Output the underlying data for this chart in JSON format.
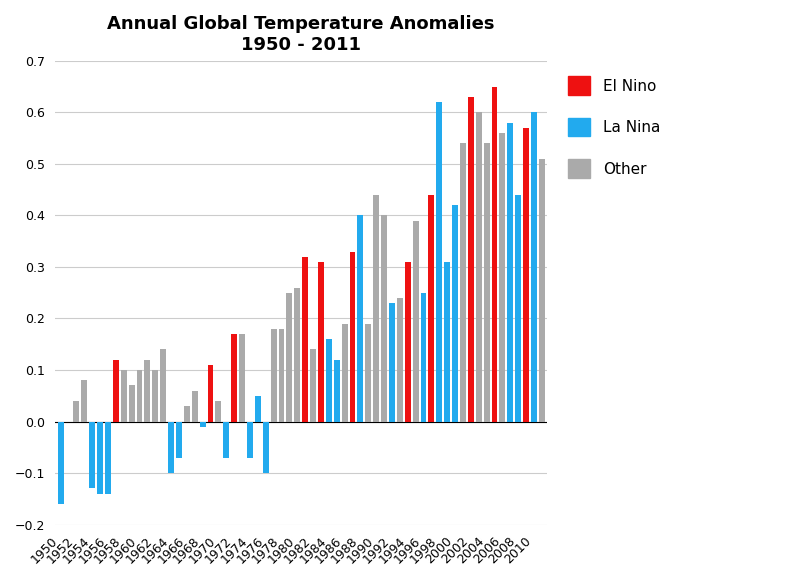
{
  "title_line1": "Annual Global Temperature Anomalies",
  "title_line2": "1950 - 2011",
  "years": [
    1950,
    1951,
    1952,
    1953,
    1954,
    1955,
    1956,
    1957,
    1958,
    1959,
    1960,
    1961,
    1962,
    1963,
    1964,
    1965,
    1966,
    1967,
    1968,
    1969,
    1970,
    1971,
    1972,
    1973,
    1974,
    1975,
    1976,
    1977,
    1978,
    1979,
    1980,
    1981,
    1982,
    1983,
    1984,
    1985,
    1986,
    1987,
    1988,
    1989,
    1990,
    1991,
    1992,
    1993,
    1994,
    1995,
    1996,
    1997,
    1998,
    1999,
    2000,
    2001,
    2002,
    2003,
    2004,
    2005,
    2006,
    2007,
    2008,
    2009,
    2010,
    2011
  ],
  "values": [
    -0.16,
    0.0,
    0.04,
    0.08,
    -0.13,
    -0.14,
    -0.14,
    0.12,
    0.1,
    0.07,
    0.1,
    0.12,
    0.1,
    0.14,
    -0.1,
    -0.07,
    0.03,
    0.06,
    -0.01,
    0.11,
    0.04,
    -0.07,
    0.17,
    0.17,
    -0.07,
    0.05,
    -0.1,
    0.18,
    0.18,
    0.25,
    0.26,
    0.32,
    0.14,
    0.31,
    0.16,
    0.12,
    0.19,
    0.33,
    0.4,
    0.19,
    0.44,
    0.4,
    0.23,
    0.24,
    0.31,
    0.39,
    0.25,
    0.44,
    0.62,
    0.31,
    0.42,
    0.54,
    0.63,
    0.6,
    0.54,
    0.65,
    0.56,
    0.58,
    0.44,
    0.57,
    0.6,
    0.51
  ],
  "enso_type": [
    "La Nina",
    "Other",
    "Other",
    "Other",
    "La Nina",
    "La Nina",
    "La Nina",
    "El Nino",
    "Other",
    "Other",
    "Other",
    "Other",
    "Other",
    "Other",
    "La Nina",
    "La Nina",
    "Other",
    "Other",
    "La Nina",
    "El Nino",
    "Other",
    "La Nina",
    "El Nino",
    "Other",
    "La Nina",
    "La Nina",
    "La Nina",
    "Other",
    "Other",
    "Other",
    "Other",
    "El Nino",
    "Other",
    "El Nino",
    "La Nina",
    "La Nina",
    "Other",
    "El Nino",
    "La Nina",
    "Other",
    "Other",
    "Other",
    "La Nina",
    "Other",
    "El Nino",
    "Other",
    "La Nina",
    "El Nino",
    "La Nina",
    "La Nina",
    "La Nina",
    "Other",
    "El Nino",
    "Other",
    "Other",
    "El Nino",
    "Other",
    "La Nina",
    "La Nina",
    "El Nino",
    "La Nina",
    "Other"
  ],
  "el_nino_color": "#EE1111",
  "la_nina_color": "#22AAEE",
  "other_color": "#AAAAAA",
  "ylim": [
    -0.2,
    0.7
  ],
  "yticks": [
    -0.2,
    -0.1,
    0.0,
    0.1,
    0.2,
    0.3,
    0.4,
    0.5,
    0.6,
    0.7
  ],
  "background_color": "#FFFFFF",
  "grid_color": "#CCCCCC",
  "figsize": [
    8.0,
    5.81
  ],
  "dpi": 100
}
